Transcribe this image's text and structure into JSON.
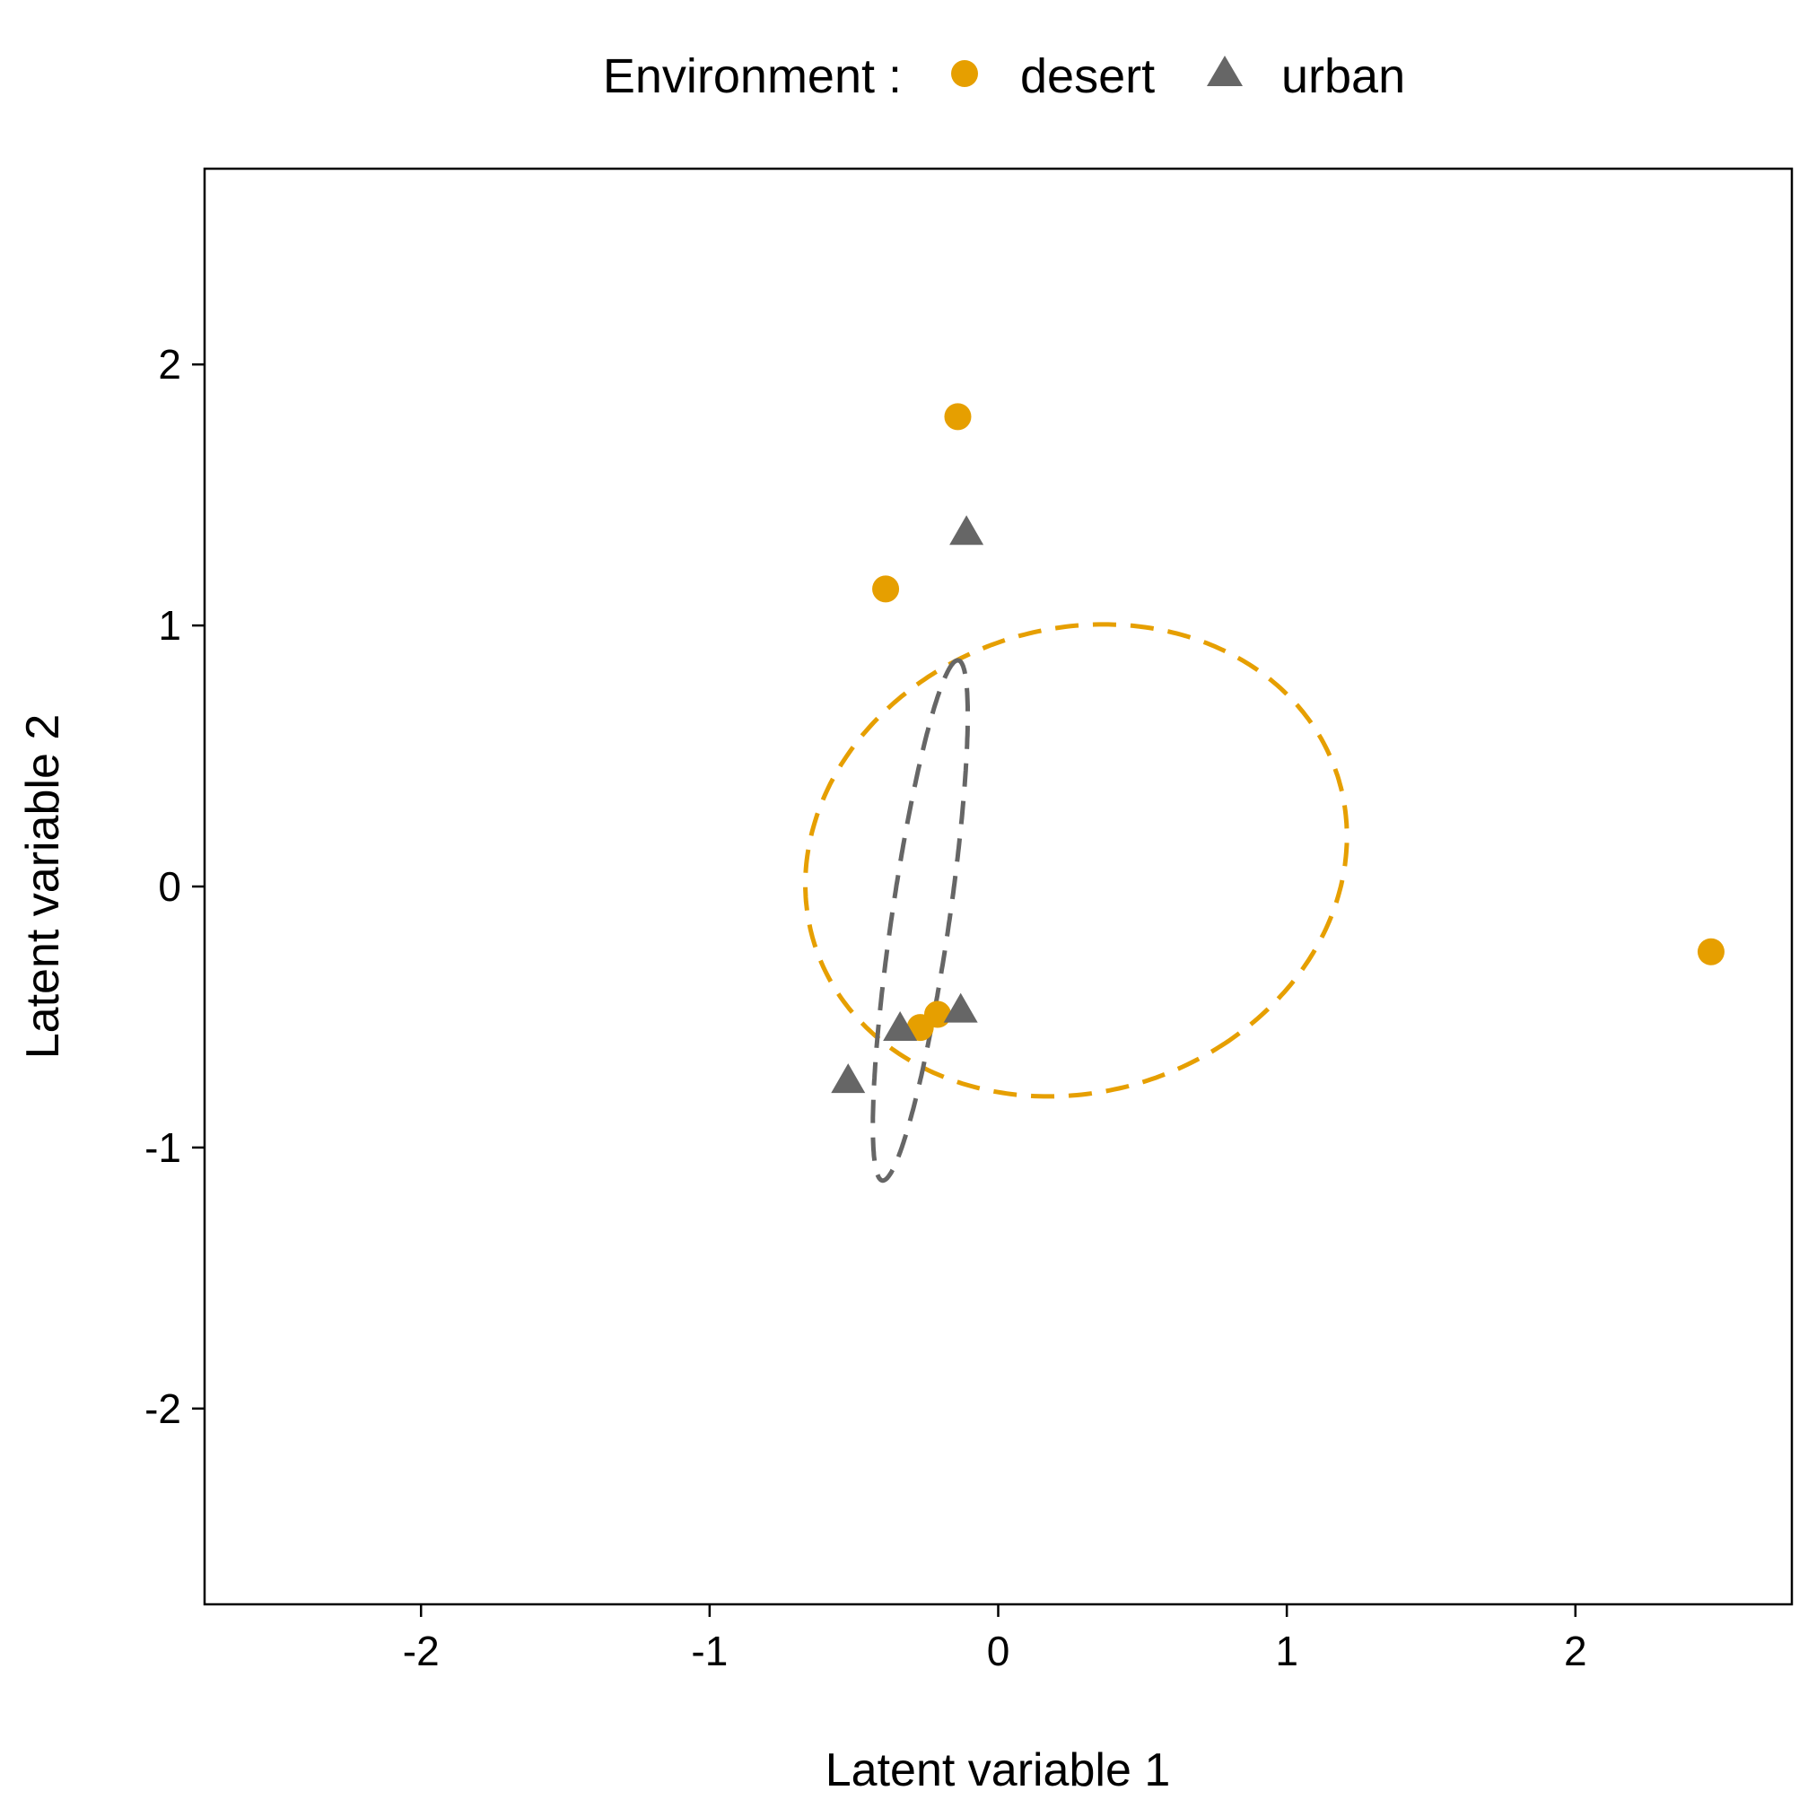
{
  "chart_data": {
    "type": "scatter",
    "xlabel": "Latent variable 1",
    "ylabel": "Latent variable 2",
    "xlim": [
      -2.75,
      2.75
    ],
    "ylim": [
      -2.75,
      2.75
    ],
    "xticks": [
      -2,
      -1,
      0,
      1,
      2
    ],
    "yticks": [
      -2,
      -1,
      0,
      1,
      2
    ],
    "grid": false,
    "legend": {
      "title": "Environment :",
      "position": "top",
      "entries": [
        {
          "label": "desert",
          "shape": "circle",
          "color": "#E69F00"
        },
        {
          "label": "urban",
          "shape": "triangle",
          "color": "#666666"
        }
      ]
    },
    "series": [
      {
        "name": "desert",
        "shape": "circle",
        "color": "#E69F00",
        "points": [
          {
            "x": -0.14,
            "y": 1.8
          },
          {
            "x": -0.39,
            "y": 1.14
          },
          {
            "x": 2.47,
            "y": -0.25
          },
          {
            "x": -0.21,
            "y": -0.49
          },
          {
            "x": -0.27,
            "y": -0.54
          }
        ],
        "ellipse": {
          "cx": 0.27,
          "cy": 0.1,
          "rx": 0.87,
          "ry": 0.97,
          "angle_deg": -55
        }
      },
      {
        "name": "urban",
        "shape": "triangle",
        "color": "#666666",
        "points": [
          {
            "x": -0.11,
            "y": 1.35
          },
          {
            "x": -0.13,
            "y": -0.48
          },
          {
            "x": -0.34,
            "y": -0.55
          },
          {
            "x": -0.52,
            "y": -0.75
          }
        ],
        "ellipse": {
          "cx": -0.27,
          "cy": -0.13,
          "rx": 1.005,
          "ry": 0.1,
          "angle_deg": 82.5
        }
      }
    ]
  }
}
